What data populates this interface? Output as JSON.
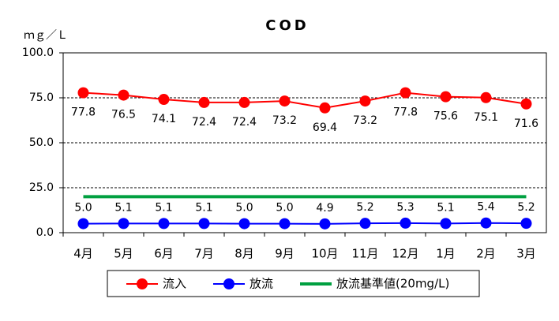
{
  "chart_data": {
    "type": "line",
    "title": "COD",
    "y_label": "ｍｇ／Ｌ",
    "categories": [
      "4月",
      "5月",
      "6月",
      "7月",
      "8月",
      "9月",
      "10月",
      "11月",
      "12月",
      "1月",
      "2月",
      "3月"
    ],
    "series": [
      {
        "name": "流入",
        "color": "#ff0000",
        "marker": true,
        "values": [
          77.8,
          76.5,
          74.1,
          72.4,
          72.4,
          73.2,
          69.4,
          73.2,
          77.8,
          75.6,
          75.1,
          71.6
        ],
        "value_labels": [
          "77.8",
          "76.5",
          "74.1",
          "72.4",
          "72.4",
          "73.2",
          "69.4",
          "73.2",
          "77.8",
          "75.6",
          "75.1",
          "71.6"
        ]
      },
      {
        "name": "放流",
        "color": "#0000ff",
        "marker": true,
        "values": [
          5.0,
          5.1,
          5.1,
          5.1,
          5.0,
          5.0,
          4.9,
          5.2,
          5.3,
          5.1,
          5.4,
          5.2
        ],
        "value_labels": [
          "5.0",
          "5.1",
          "5.1",
          "5.1",
          "5.0",
          "5.0",
          "4.9",
          "5.2",
          "5.3",
          "5.1",
          "5.4",
          "5.2"
        ]
      },
      {
        "name": "放流基準値(20mg/L)",
        "color": "#00a040",
        "marker": false,
        "values": [
          20,
          20,
          20,
          20,
          20,
          20,
          20,
          20,
          20,
          20,
          20,
          20
        ]
      }
    ],
    "ylim": [
      0,
      100
    ],
    "yticks": [
      {
        "value": 0,
        "label": "0.0"
      },
      {
        "value": 25,
        "label": "25.0"
      },
      {
        "value": 50,
        "label": "50.0"
      },
      {
        "value": 75,
        "label": "75.0"
      },
      {
        "value": 100,
        "label": "100.0"
      }
    ],
    "grid": true
  }
}
